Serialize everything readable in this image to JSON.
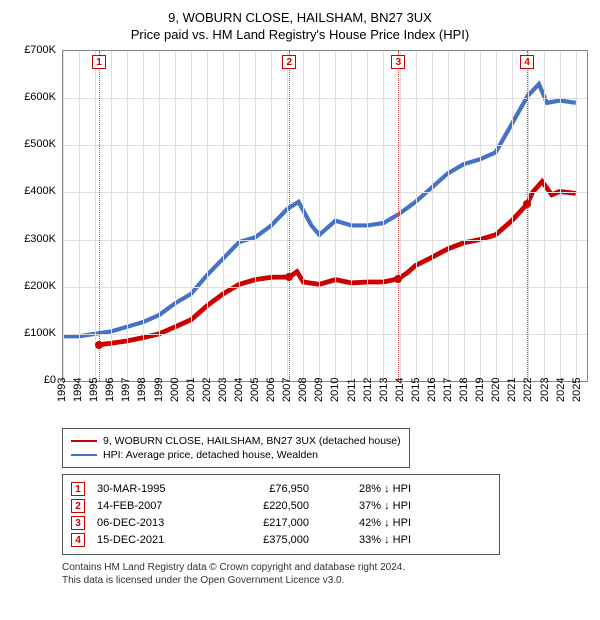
{
  "title": "9, WOBURN CLOSE, HAILSHAM, BN27 3UX",
  "subtitle": "Price paid vs. HM Land Registry's House Price Index (HPI)",
  "chart": {
    "type": "line",
    "background_color": "#ffffff",
    "grid_color": "#dddddd",
    "axis_color": "#888888",
    "title_fontsize": 13,
    "label_fontsize": 11,
    "x": {
      "min": 1993,
      "max": 2025.7,
      "ticks": [
        1993,
        1994,
        1995,
        1996,
        1997,
        1998,
        1999,
        2000,
        2001,
        2002,
        2003,
        2004,
        2005,
        2006,
        2007,
        2008,
        2009,
        2010,
        2011,
        2012,
        2013,
        2014,
        2015,
        2016,
        2017,
        2018,
        2019,
        2020,
        2021,
        2022,
        2023,
        2024,
        2025
      ]
    },
    "y": {
      "min": 0,
      "max": 700000,
      "ticks": [
        0,
        100000,
        200000,
        300000,
        400000,
        500000,
        600000,
        700000
      ],
      "tick_labels": [
        "£0",
        "£100K",
        "£200K",
        "£300K",
        "£400K",
        "£500K",
        "£600K",
        "£700K"
      ]
    },
    "series": [
      {
        "name": "9, WOBURN CLOSE, HAILSHAM, BN27 3UX (detached house)",
        "color": "#cc0000",
        "line_width": 1.6,
        "points": [
          [
            1995.25,
            76950
          ],
          [
            1996,
            80000
          ],
          [
            1997,
            85000
          ],
          [
            1998,
            92000
          ],
          [
            1999,
            100000
          ],
          [
            2000,
            115000
          ],
          [
            2001,
            130000
          ],
          [
            2002,
            160000
          ],
          [
            2003,
            185000
          ],
          [
            2004,
            205000
          ],
          [
            2005,
            215000
          ],
          [
            2006,
            220000
          ],
          [
            2007.12,
            220500
          ],
          [
            2007.6,
            232000
          ],
          [
            2008,
            210000
          ],
          [
            2009,
            205000
          ],
          [
            2010,
            215000
          ],
          [
            2011,
            208000
          ],
          [
            2012,
            210000
          ],
          [
            2013,
            210000
          ],
          [
            2013.93,
            217000
          ],
          [
            2014.5,
            230000
          ],
          [
            2015,
            245000
          ],
          [
            2016,
            262000
          ],
          [
            2017,
            280000
          ],
          [
            2018,
            293000
          ],
          [
            2019,
            300000
          ],
          [
            2020,
            310000
          ],
          [
            2021,
            340000
          ],
          [
            2021.96,
            375000
          ],
          [
            2022.3,
            400000
          ],
          [
            2022.9,
            423000
          ],
          [
            2023.5,
            395000
          ],
          [
            2024,
            402000
          ],
          [
            2025,
            398000
          ]
        ]
      },
      {
        "name": "HPI: Average price, detached house, Wealden",
        "color": "#4472c4",
        "line_width": 1.4,
        "points": [
          [
            1993,
            95000
          ],
          [
            1994,
            95000
          ],
          [
            1995,
            100000
          ],
          [
            1996,
            105000
          ],
          [
            1997,
            115000
          ],
          [
            1998,
            125000
          ],
          [
            1999,
            140000
          ],
          [
            2000,
            165000
          ],
          [
            2001,
            185000
          ],
          [
            2002,
            225000
          ],
          [
            2003,
            260000
          ],
          [
            2004,
            295000
          ],
          [
            2005,
            305000
          ],
          [
            2006,
            330000
          ],
          [
            2007,
            365000
          ],
          [
            2007.7,
            380000
          ],
          [
            2008.5,
            330000
          ],
          [
            2009,
            310000
          ],
          [
            2010,
            340000
          ],
          [
            2011,
            330000
          ],
          [
            2012,
            330000
          ],
          [
            2013,
            335000
          ],
          [
            2014,
            355000
          ],
          [
            2015,
            380000
          ],
          [
            2016,
            410000
          ],
          [
            2017,
            440000
          ],
          [
            2018,
            460000
          ],
          [
            2019,
            470000
          ],
          [
            2020,
            485000
          ],
          [
            2021,
            545000
          ],
          [
            2022,
            605000
          ],
          [
            2022.7,
            630000
          ],
          [
            2023.2,
            590000
          ],
          [
            2024,
            595000
          ],
          [
            2025,
            590000
          ]
        ]
      }
    ],
    "sale_markers": [
      {
        "n": "1",
        "date": "30-MAR-1995",
        "x": 1995.25,
        "price_label": "£76,950",
        "price": 76950,
        "delta": "28% ↓ HPI"
      },
      {
        "n": "2",
        "date": "14-FEB-2007",
        "x": 2007.12,
        "price_label": "£220,500",
        "price": 220500,
        "delta": "37% ↓ HPI"
      },
      {
        "n": "3",
        "date": "06-DEC-2013",
        "x": 2013.93,
        "price_label": "£217,000",
        "price": 217000,
        "delta": "42% ↓ HPI"
      },
      {
        "n": "4",
        "date": "15-DEC-2021",
        "x": 2021.96,
        "price_label": "£375,000",
        "price": 375000,
        "delta": "33% ↓ HPI"
      }
    ]
  },
  "legend": {
    "border_color": "#555555",
    "fontsize": 10.5,
    "items": [
      {
        "color": "#cc0000",
        "label": "9, WOBURN CLOSE, HAILSHAM, BN27 3UX (detached house)"
      },
      {
        "color": "#4472c4",
        "label": "HPI: Average price, detached house, Wealden"
      }
    ]
  },
  "footnote": {
    "line1": "Contains HM Land Registry data © Crown copyright and database right 2024.",
    "line2": "This data is licensed under the Open Government Licence v3.0."
  }
}
